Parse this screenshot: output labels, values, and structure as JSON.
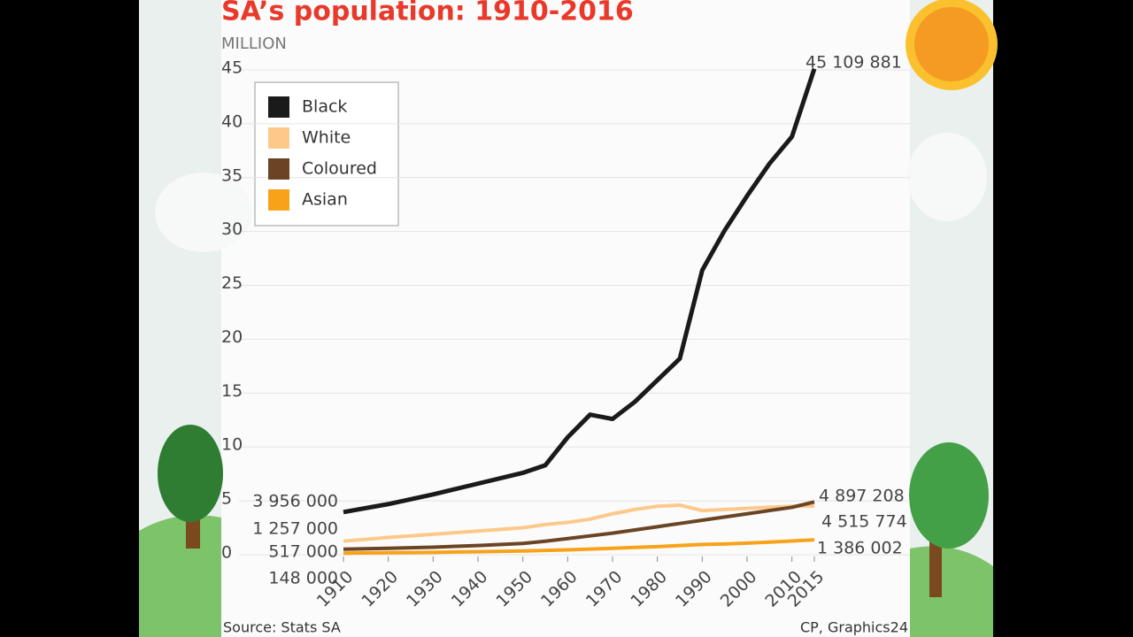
{
  "chart_data": {
    "type": "line",
    "title": "SA’s population: 1910-2016",
    "y_label": "MILLION",
    "source": "Source: Stats SA",
    "credit": "CP, Graphics24",
    "x": [
      1910,
      1920,
      1930,
      1940,
      1950,
      1955,
      1960,
      1965,
      1970,
      1975,
      1980,
      1985,
      1990,
      1995,
      2000,
      2005,
      2010,
      2015
    ],
    "series": [
      {
        "name": "Black",
        "color": "#1a1a1a",
        "values": [
          3.956,
          4.7,
          5.6,
          6.6,
          7.6,
          8.3,
          10.9,
          13.0,
          12.6,
          14.2,
          16.2,
          18.2,
          26.4,
          30.1,
          33.3,
          36.3,
          38.8,
          45.109881
        ],
        "value_labels": [
          "3 956 000",
          null,
          null,
          null,
          null,
          null,
          null,
          null,
          null,
          null,
          null,
          null,
          null,
          null,
          null,
          null,
          null,
          "45 109 881"
        ]
      },
      {
        "name": "White",
        "color": "#fcc98a",
        "values": [
          1.257,
          1.6,
          1.9,
          2.2,
          2.5,
          2.8,
          3.0,
          3.3,
          3.8,
          4.2,
          4.5,
          4.6,
          4.1,
          4.2,
          4.3,
          4.4,
          4.5,
          4.515774
        ],
        "value_labels": [
          "1 257 000",
          null,
          null,
          null,
          null,
          null,
          null,
          null,
          null,
          null,
          null,
          null,
          null,
          null,
          null,
          null,
          null,
          "4 515 774"
        ]
      },
      {
        "name": "Coloured",
        "color": "#6b4424",
        "values": [
          0.517,
          0.6,
          0.7,
          0.85,
          1.05,
          1.25,
          1.5,
          1.75,
          2.0,
          2.3,
          2.6,
          2.9,
          3.2,
          3.5,
          3.8,
          4.1,
          4.4,
          4.897208
        ],
        "value_labels": [
          "517 000",
          null,
          null,
          null,
          null,
          null,
          null,
          null,
          null,
          null,
          null,
          null,
          null,
          null,
          null,
          null,
          null,
          "4 897 208"
        ]
      },
      {
        "name": "Asian",
        "color": "#f8a21a",
        "values": [
          0.148,
          0.18,
          0.22,
          0.28,
          0.35,
          0.4,
          0.45,
          0.52,
          0.6,
          0.68,
          0.75,
          0.85,
          0.95,
          1.0,
          1.08,
          1.17,
          1.27,
          1.386002
        ],
        "value_labels": [
          "148 000",
          null,
          null,
          null,
          null,
          null,
          null,
          null,
          null,
          null,
          null,
          null,
          null,
          null,
          null,
          null,
          null,
          "1 386 002"
        ]
      }
    ],
    "xlim": [
      1910,
      2015
    ],
    "xticks": [
      1910,
      1920,
      1930,
      1940,
      1950,
      1960,
      1970,
      1980,
      1990,
      2000,
      2010,
      2015
    ],
    "ylim": [
      0,
      45
    ],
    "yticks": [
      0,
      5,
      10,
      15,
      20,
      25,
      30,
      35,
      40,
      45
    ],
    "grid": true
  }
}
